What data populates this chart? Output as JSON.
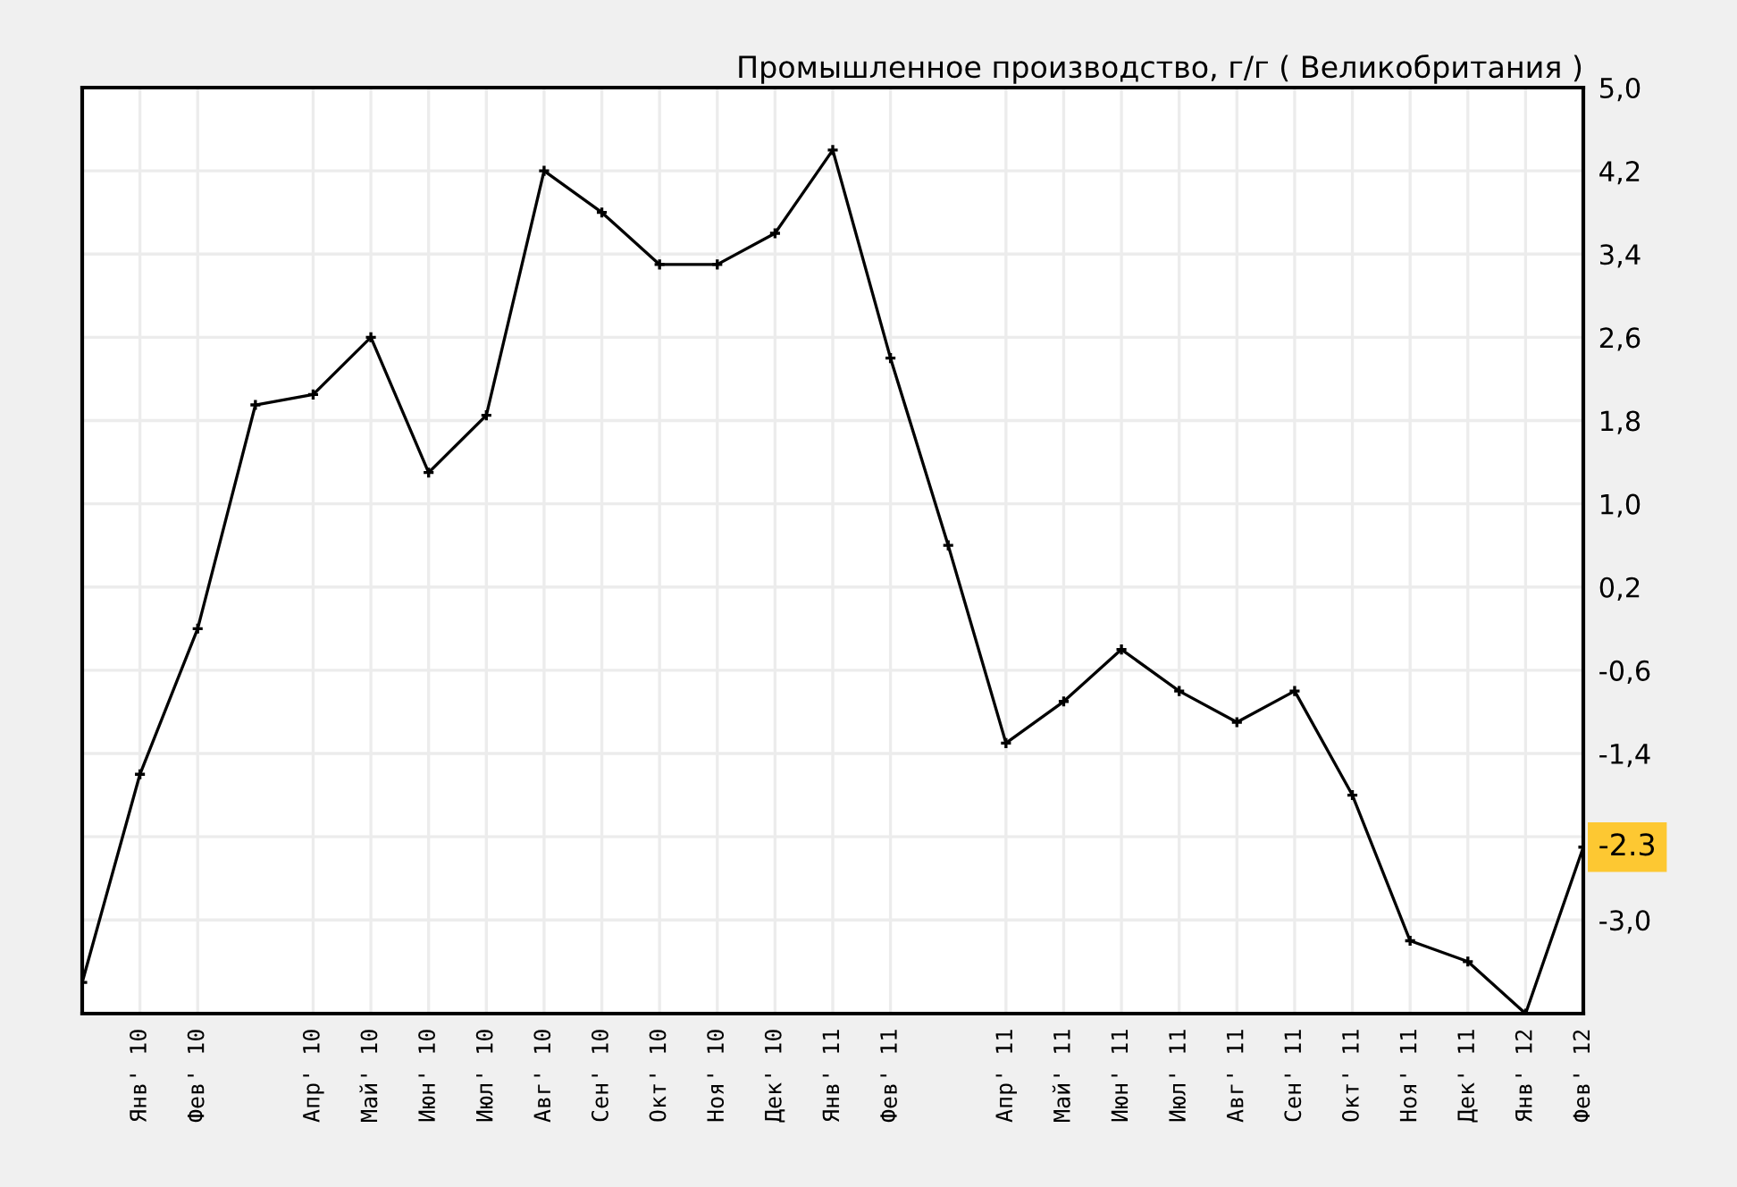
{
  "chart_data": {
    "type": "line",
    "title": "Промышленное производство, г/г ( Великобритания )",
    "categories": [
      null,
      "Янв' 10",
      "Фев' 10",
      null,
      "Апр' 10",
      "Май' 10",
      "Июн' 10",
      "Июл' 10",
      "Авг' 10",
      "Сен' 10",
      "Окт' 10",
      "Ноя' 10",
      "Дек' 10",
      "Янв' 11",
      "Фев' 11",
      null,
      "Апр' 11",
      "Май' 11",
      "Июн' 11",
      "Июл' 11",
      "Авг' 11",
      "Сен' 11",
      "Окт' 11",
      "Ноя' 11",
      "Дек' 11",
      "Янв' 12",
      "Фев' 12"
    ],
    "series": [
      {
        "color": "#000000",
        "values": [
          -3.6,
          -1.6,
          -0.2,
          1.95,
          2.05,
          2.6,
          1.3,
          1.85,
          4.2,
          3.8,
          3.3,
          3.3,
          3.6,
          4.4,
          2.4,
          0.6,
          -1.3,
          -0.9,
          -0.4,
          -0.8,
          -1.1,
          -0.8,
          -1.8,
          -3.2,
          -3.4,
          -3.9,
          -2.3
        ]
      }
    ],
    "ylim": [
      -3.9,
      5.0
    ],
    "yticks": [
      {
        "value": 5.0,
        "label": "5,0"
      },
      {
        "value": 4.2,
        "label": "4,2"
      },
      {
        "value": 3.4,
        "label": "3,4"
      },
      {
        "value": 2.6,
        "label": "2,6"
      },
      {
        "value": 1.8,
        "label": "1,8"
      },
      {
        "value": 1.0,
        "label": "1,0"
      },
      {
        "value": 0.2,
        "label": "0,2"
      },
      {
        "value": -0.6,
        "label": "-0,6"
      },
      {
        "value": -1.4,
        "label": "-1,4"
      },
      {
        "value": -2.2,
        "label": null
      },
      {
        "value": -3.0,
        "label": "-3,0"
      }
    ],
    "annotations": [
      {
        "text": "-2.3",
        "x": "Фев' 12",
        "y": -2.3
      }
    ],
    "grid": true,
    "marker": "cross",
    "line_style": "solid",
    "legend": false
  }
}
